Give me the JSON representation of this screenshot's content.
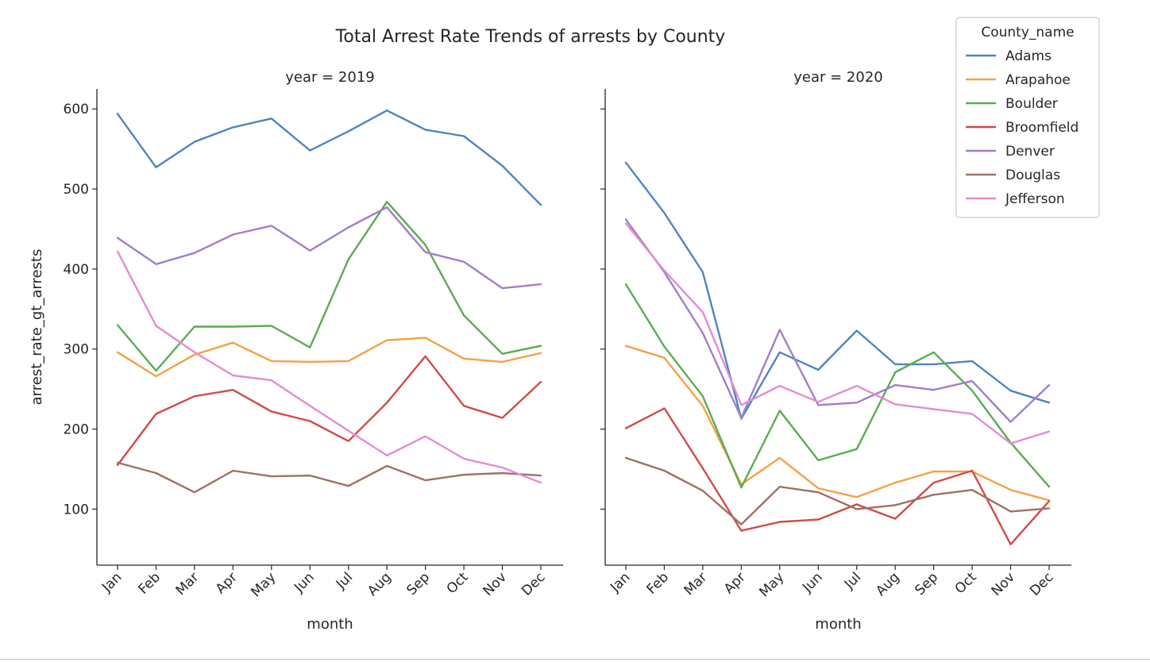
{
  "figure": {
    "title": "Total Arrest Rate Trends of arrests by County"
  },
  "chart_data": {
    "type": "line",
    "title": "Total Arrest Rate Trends of arrests by County",
    "ylabel": "arrest_rate_gt_arrests",
    "xlabel": "month",
    "ylim": [
      30,
      625
    ],
    "yticks": [
      100,
      200,
      300,
      400,
      500,
      600
    ],
    "categories": [
      "Jan",
      "Feb",
      "Mar",
      "Apr",
      "May",
      "Jun",
      "Jul",
      "Aug",
      "Sep",
      "Oct",
      "Nov",
      "Dec"
    ],
    "grid": false,
    "legend": {
      "title": "County_name",
      "placement": "top-right",
      "entries": [
        "Adams",
        "Arapahoe",
        "Boulder",
        "Broomfield",
        "Denver",
        "Douglas",
        "Jefferson"
      ]
    },
    "colors": {
      "Adams": "#4c86c0",
      "Arapahoe": "#f5a046",
      "Boulder": "#58ad4f",
      "Broomfield": "#d24b48",
      "Denver": "#a17fc8",
      "Douglas": "#9e7163",
      "Jefferson": "#e58bd0"
    },
    "panels": [
      {
        "title": "year = 2019",
        "series": [
          {
            "name": "Adams",
            "values": [
              594,
              527,
              559,
              577,
              588,
              548,
              572,
              598,
              574,
              566,
              529,
              480
            ]
          },
          {
            "name": "Arapahoe",
            "values": [
              296,
              266,
              293,
              308,
              285,
              284,
              285,
              311,
              314,
              288,
              284,
              295
            ]
          },
          {
            "name": "Boulder",
            "values": [
              330,
              273,
              328,
              328,
              329,
              302,
              412,
              484,
              430,
              342,
              294,
              304
            ]
          },
          {
            "name": "Broomfield",
            "values": [
              155,
              219,
              241,
              249,
              222,
              210,
              185,
              233,
              291,
              229,
              214,
              259
            ]
          },
          {
            "name": "Denver",
            "values": [
              439,
              406,
              420,
              443,
              454,
              423,
              452,
              477,
              421,
              409,
              376,
              381
            ]
          },
          {
            "name": "Douglas",
            "values": [
              158,
              145,
              121,
              148,
              141,
              142,
              129,
              154,
              136,
              143,
              145,
              142
            ]
          },
          {
            "name": "Jefferson",
            "values": [
              422,
              329,
              296,
              267,
              261,
              229,
              198,
              167,
              191,
              163,
              152,
              133
            ]
          }
        ]
      },
      {
        "title": "year = 2020",
        "series": [
          {
            "name": "Adams",
            "values": [
              533,
              470,
              396,
              213,
              296,
              274,
              323,
              281,
              281,
              285,
              248,
              233
            ]
          },
          {
            "name": "Arapahoe",
            "values": [
              304,
              289,
              229,
              131,
              164,
              126,
              115,
              133,
              147,
              147,
              124,
              111
            ]
          },
          {
            "name": "Boulder",
            "values": [
              381,
              303,
              241,
              127,
              223,
              161,
              175,
              271,
              296,
              248,
              183,
              128
            ]
          },
          {
            "name": "Broomfield",
            "values": [
              201,
              226,
              151,
              73,
              84,
              87,
              106,
              88,
              133,
              148,
              56,
              110
            ]
          },
          {
            "name": "Denver",
            "values": [
              462,
              396,
              320,
              214,
              324,
              230,
              233,
              255,
              249,
              260,
              209,
              255
            ]
          },
          {
            "name": "Douglas",
            "values": [
              164,
              148,
              123,
              81,
              128,
              121,
              100,
              105,
              118,
              124,
              97,
              101
            ]
          },
          {
            "name": "Jefferson",
            "values": [
              457,
              398,
              346,
              230,
              254,
              234,
              254,
              231,
              225,
              219,
              182,
              197
            ]
          }
        ]
      }
    ]
  }
}
